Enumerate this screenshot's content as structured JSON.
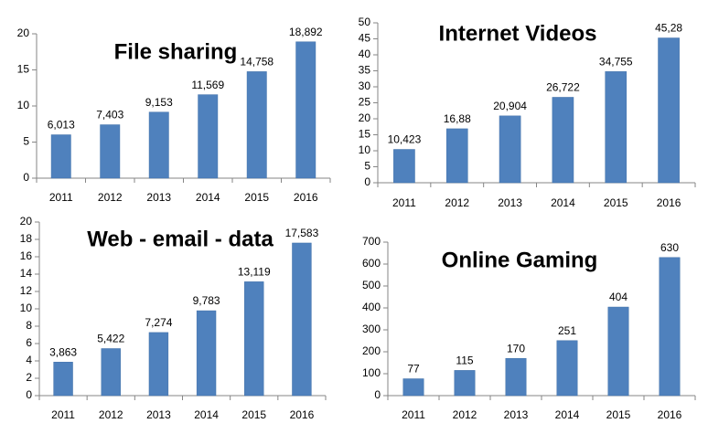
{
  "colors": {
    "bar": "#4f81bd",
    "bar_edge": "#3f6fa8",
    "axis": "#868686",
    "text": "#000000"
  },
  "chart_data": [
    {
      "type": "bar",
      "title": "File sharing",
      "categories": [
        "2011",
        "2012",
        "2013",
        "2014",
        "2015",
        "2016"
      ],
      "values": [
        6.013,
        7.403,
        9.153,
        11.569,
        14.758,
        18.892
      ],
      "data_labels": [
        "6,013",
        "7,403",
        "9,153",
        "11,569",
        "14,758",
        "18,892"
      ],
      "ylim": [
        0,
        20
      ],
      "yticks": [
        "0",
        "5",
        "10",
        "15",
        "20"
      ],
      "grid": false,
      "legend": "none"
    },
    {
      "type": "bar",
      "title": "Internet Videos",
      "categories": [
        "2011",
        "2012",
        "2013",
        "2014",
        "2015",
        "2016"
      ],
      "values": [
        10.423,
        16.88,
        20.904,
        26.722,
        34.755,
        45.28
      ],
      "data_labels": [
        "10,423",
        "16,88",
        "20,904",
        "26,722",
        "34,755",
        "45,28"
      ],
      "ylim": [
        0,
        50
      ],
      "yticks": [
        "0",
        "5",
        "10",
        "15",
        "20",
        "25",
        "30",
        "35",
        "40",
        "45",
        "50"
      ],
      "grid": false,
      "legend": "none"
    },
    {
      "type": "bar",
      "title": "Web - email - data",
      "categories": [
        "2011",
        "2012",
        "2013",
        "2014",
        "2015",
        "2016"
      ],
      "values": [
        3.863,
        5.422,
        7.274,
        9.783,
        13.119,
        17.583
      ],
      "data_labels": [
        "3,863",
        "5,422",
        "7,274",
        "9,783",
        "13,119",
        "17,583"
      ],
      "ylim": [
        0,
        20
      ],
      "yticks": [
        "0",
        "2",
        "4",
        "6",
        "8",
        "10",
        "12",
        "14",
        "16",
        "18",
        "20"
      ],
      "grid": false,
      "legend": "none"
    },
    {
      "type": "bar",
      "title": "Online Gaming",
      "categories": [
        "2011",
        "2012",
        "2013",
        "2014",
        "2015",
        "2016"
      ],
      "values": [
        77,
        115,
        170,
        251,
        404,
        630
      ],
      "data_labels": [
        "77",
        "115",
        "170",
        "251",
        "404",
        "630"
      ],
      "ylim": [
        0,
        700
      ],
      "yticks": [
        "0",
        "100",
        "200",
        "300",
        "400",
        "500",
        "600",
        "700"
      ],
      "grid": false,
      "legend": "none"
    }
  ]
}
